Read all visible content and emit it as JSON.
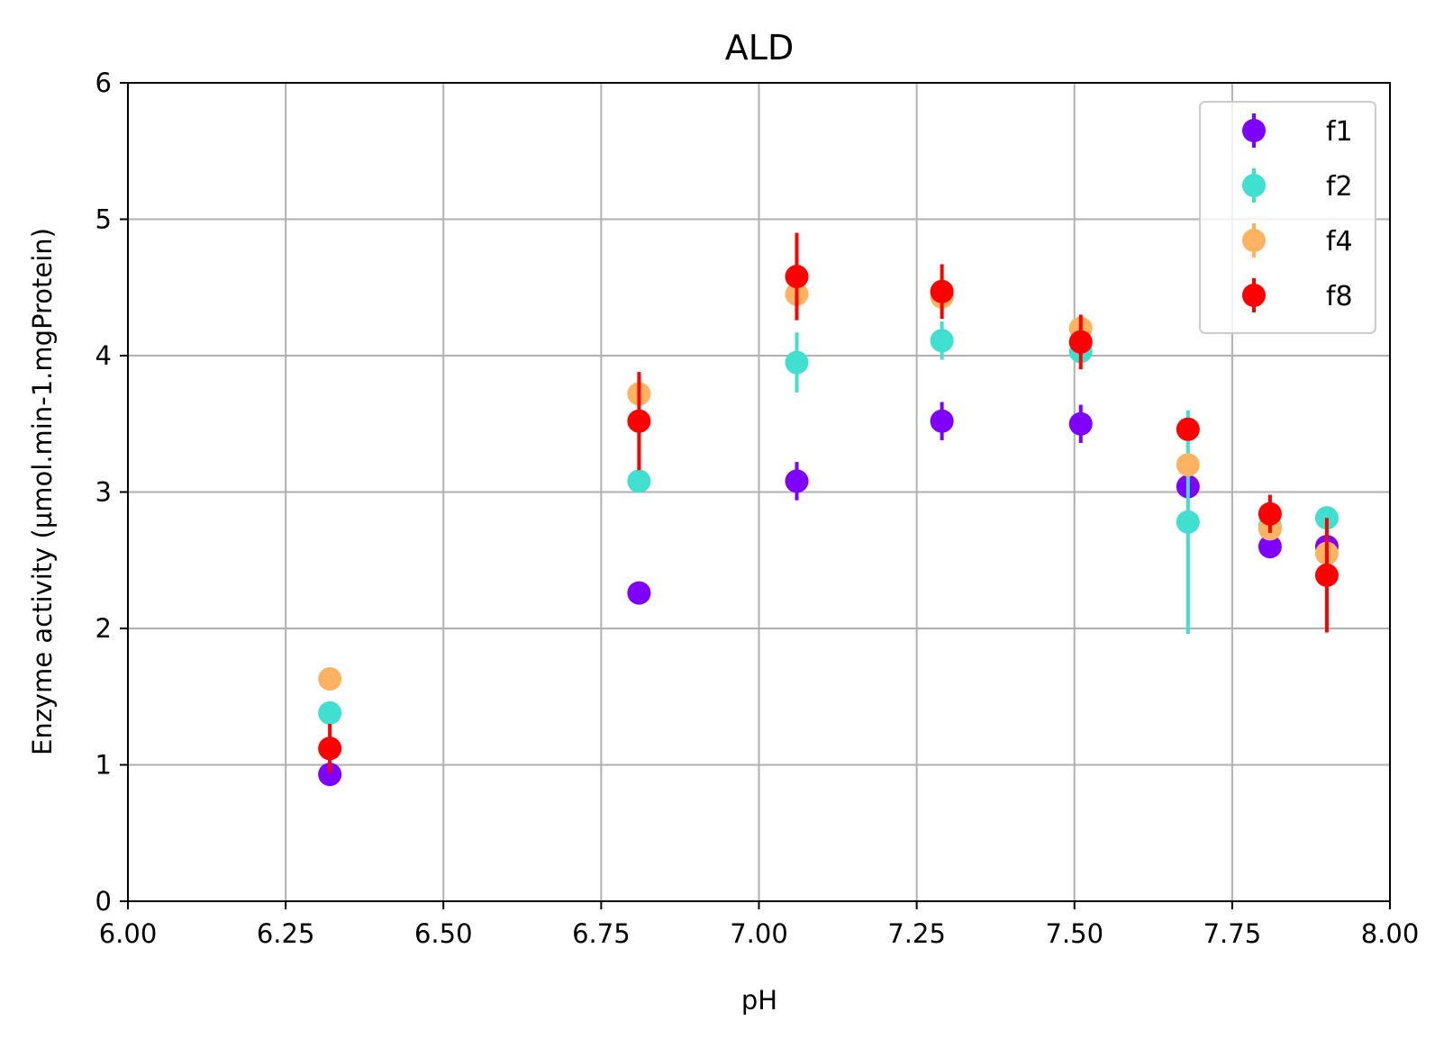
{
  "chart_data": {
    "type": "scatter",
    "title": "ALD",
    "xlabel": "pH",
    "ylabel": "Enzyme activity (µmol.min-1.mgProtein)",
    "xlim": [
      6.0,
      8.0
    ],
    "ylim": [
      0,
      6
    ],
    "xticks": [
      6.0,
      6.25,
      6.5,
      6.75,
      7.0,
      7.25,
      7.5,
      7.75,
      8.0
    ],
    "xtick_labels": [
      "6.00",
      "6.25",
      "6.50",
      "6.75",
      "7.00",
      "7.25",
      "7.50",
      "7.75",
      "8.00"
    ],
    "yticks": [
      0,
      1,
      2,
      3,
      4,
      5,
      6
    ],
    "ytick_labels": [
      "0",
      "1",
      "2",
      "3",
      "4",
      "5",
      "6"
    ],
    "grid": true,
    "legend_position": "top-right",
    "series": [
      {
        "name": "f1",
        "color": "#8000ff",
        "x": [
          6.32,
          6.81,
          7.06,
          7.29,
          7.51,
          7.68,
          7.81,
          7.9
        ],
        "y": [
          0.93,
          2.26,
          3.08,
          3.52,
          3.5,
          3.04,
          2.6,
          2.6
        ],
        "err": [
          0.04,
          0.04,
          0.14,
          0.14,
          0.14,
          0.06,
          0.04,
          0.08
        ]
      },
      {
        "name": "f2",
        "color": "#40e0d0",
        "x": [
          6.32,
          6.81,
          7.06,
          7.29,
          7.51,
          7.68,
          7.81,
          7.9
        ],
        "y": [
          1.38,
          3.08,
          3.95,
          4.11,
          4.03,
          2.78,
          2.75,
          2.81
        ],
        "err": [
          0.04,
          0.08,
          0.22,
          0.14,
          0.05,
          0.82,
          0.04,
          0.04
        ]
      },
      {
        "name": "f4",
        "color": "#ffb360",
        "x": [
          6.32,
          6.81,
          7.06,
          7.29,
          7.51,
          7.68,
          7.81,
          7.9
        ],
        "y": [
          1.63,
          3.72,
          4.45,
          4.43,
          4.2,
          3.2,
          2.73,
          2.55
        ],
        "err": [
          0.04,
          0.1,
          0.08,
          0.1,
          0.08,
          0.06,
          0.06,
          0.06
        ]
      },
      {
        "name": "f8",
        "color": "#ff0000",
        "x": [
          6.32,
          6.81,
          7.06,
          7.29,
          7.51,
          7.68,
          7.81,
          7.9
        ],
        "y": [
          1.12,
          3.52,
          4.58,
          4.47,
          4.1,
          3.46,
          2.84,
          2.39
        ],
        "err": [
          0.18,
          0.36,
          0.32,
          0.2,
          0.2,
          0.04,
          0.14,
          0.42
        ]
      }
    ]
  }
}
